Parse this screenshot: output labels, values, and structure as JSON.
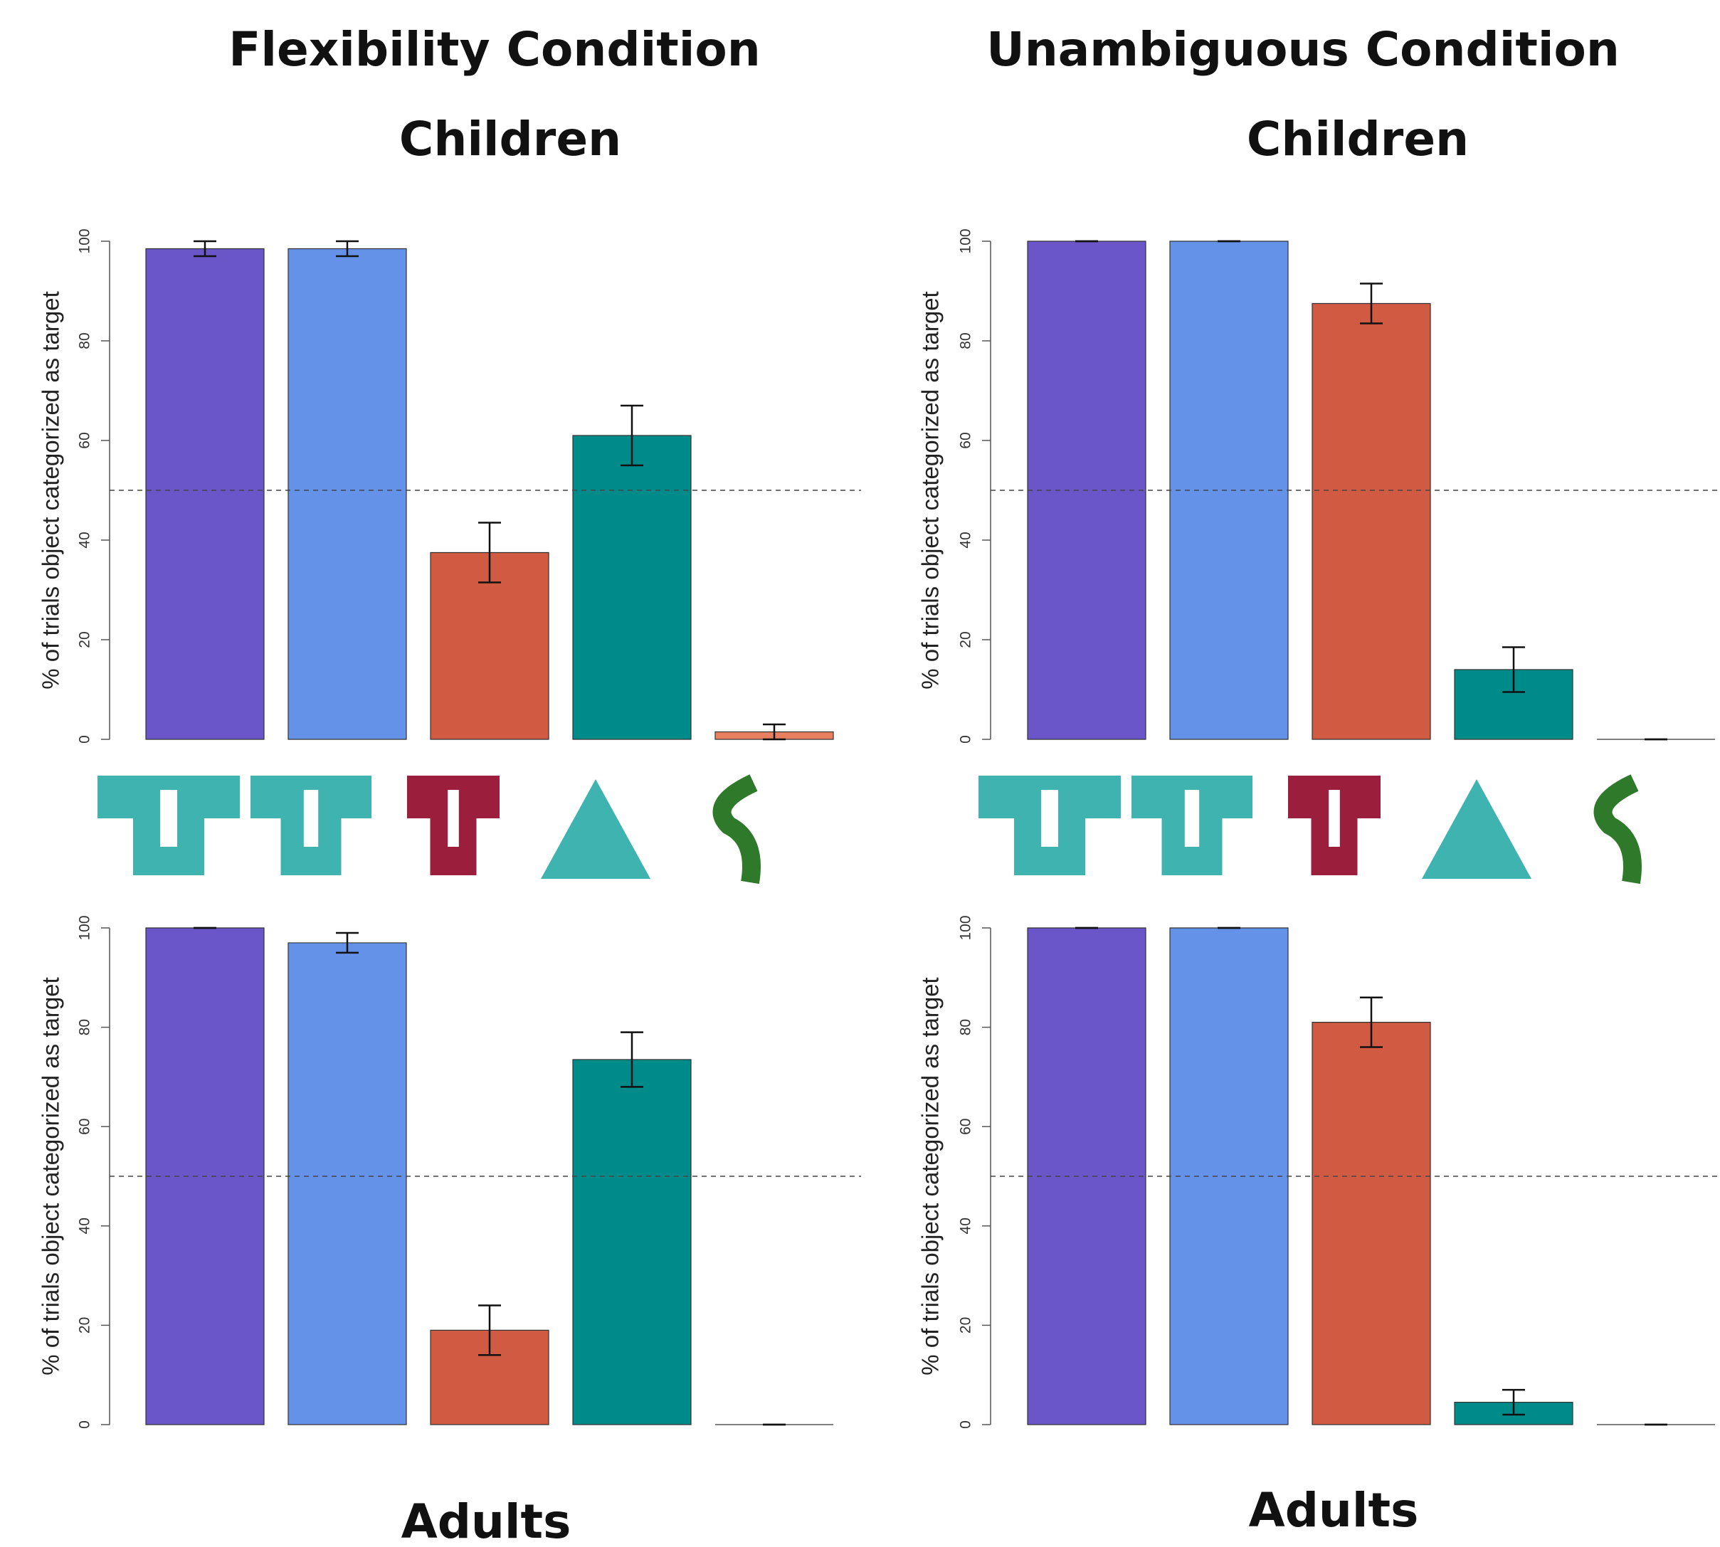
{
  "headers": [
    "Flexibility Condition",
    "Unambiguous Condition"
  ],
  "chart_data": [
    {
      "type": "bar",
      "title": "Children",
      "ylabel": "% of trials object categorized as target",
      "values": [
        98.5,
        98.5,
        37.5,
        61,
        1.5
      ],
      "errors": [
        1.5,
        1.5,
        6,
        6,
        1.5
      ],
      "colors": [
        "#6a56c8",
        "#6492e9",
        "#d05a42",
        "#008b8b",
        "#e8805f"
      ],
      "ylim": [
        0,
        100
      ],
      "yticks": [
        0,
        20,
        40,
        60,
        80,
        100
      ],
      "reference_line": 50
    },
    {
      "type": "bar",
      "title": "Children",
      "ylabel": "% of trials object categorized as target",
      "values": [
        100,
        100,
        87.5,
        14,
        0
      ],
      "errors": [
        0,
        0,
        4,
        4.5,
        0
      ],
      "colors": [
        "#6a56c8",
        "#6492e9",
        "#d05a42",
        "#008b8b",
        "#e8805f"
      ],
      "ylim": [
        0,
        100
      ],
      "yticks": [
        0,
        20,
        40,
        60,
        80,
        100
      ],
      "reference_line": 50
    },
    {
      "type": "bar",
      "title": "Adults",
      "ylabel": "% of trials object categorized as target",
      "values": [
        100,
        97,
        19,
        73.5,
        0
      ],
      "errors": [
        0,
        2,
        5,
        5.5,
        0
      ],
      "colors": [
        "#6a56c8",
        "#6492e9",
        "#d05a42",
        "#008b8b",
        "#e8805f"
      ],
      "ylim": [
        0,
        100
      ],
      "yticks": [
        0,
        20,
        40,
        60,
        80,
        100
      ],
      "reference_line": 50
    },
    {
      "type": "bar",
      "title": "Adults",
      "ylabel": "% of trials object categorized as target",
      "values": [
        100,
        100,
        81,
        4.5,
        0
      ],
      "errors": [
        0,
        0,
        5,
        2.5,
        0
      ],
      "colors": [
        "#6a56c8",
        "#6492e9",
        "#d05a42",
        "#008b8b",
        "#e8805f"
      ],
      "ylim": [
        0,
        100
      ],
      "yticks": [
        0,
        20,
        40,
        60,
        80,
        100
      ],
      "reference_line": 50
    }
  ]
}
